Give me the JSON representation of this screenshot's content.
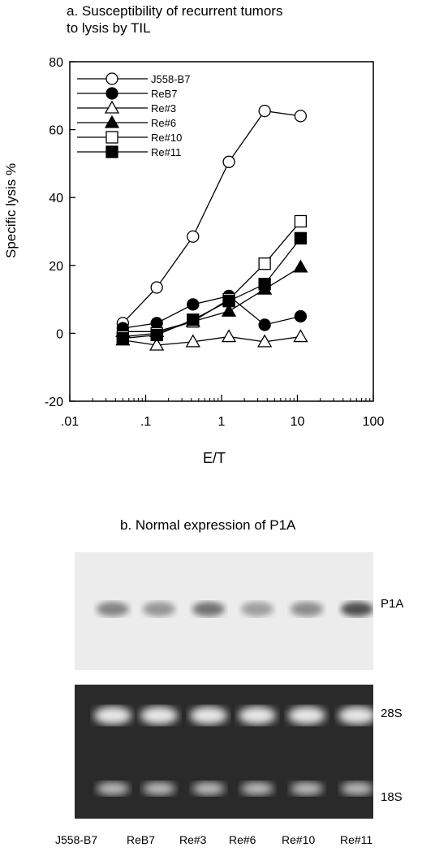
{
  "panel_a": {
    "title": "a. Susceptibility of recurrent tumors\n to lysis by TIL"
  },
  "panel_b": {
    "title": "b. Normal expression of P1A",
    "bands": [
      "P1A",
      "28S",
      "18S"
    ],
    "lanes": [
      "J558-B7",
      "ReB7",
      "Re#3",
      "Re#6",
      "Re#10",
      "Re#11"
    ],
    "p1a_intensity": [
      0.55,
      0.45,
      0.65,
      0.4,
      0.5,
      0.85
    ]
  },
  "chart_data": {
    "type": "line",
    "xlabel": "E/T",
    "ylabel": "Specific lysis %",
    "xscale": "log",
    "xlim": [
      0.01,
      100
    ],
    "ylim": [
      -20,
      80
    ],
    "x_ticks": [
      ".01",
      ".1",
      "1",
      "10",
      "100"
    ],
    "y_ticks": [
      "-20",
      "0",
      "20",
      "40",
      "60",
      "80"
    ],
    "grid": false,
    "legend_position": "top-left",
    "series": [
      {
        "name": "J558-B7",
        "marker": "open-circle",
        "x": [
          0.05,
          0.14,
          0.42,
          1.25,
          3.7,
          11
        ],
        "y": [
          3,
          13.5,
          28.5,
          50.5,
          65.5,
          64
        ]
      },
      {
        "name": "ReB7",
        "marker": "filled-circle",
        "x": [
          0.05,
          0.14,
          0.42,
          1.25,
          3.7,
          11
        ],
        "y": [
          1.5,
          3,
          8.5,
          11,
          2.5,
          5
        ]
      },
      {
        "name": "Re#3",
        "marker": "open-triangle",
        "x": [
          0.05,
          0.14,
          0.42,
          1.25,
          3.7,
          11
        ],
        "y": [
          -2,
          -3.5,
          -2.5,
          -1,
          -2.5,
          -1
        ]
      },
      {
        "name": "Re#6",
        "marker": "filled-triangle",
        "x": [
          0.05,
          0.14,
          0.42,
          1.25,
          3.7,
          11
        ],
        "y": [
          0.5,
          0.5,
          3.5,
          6.5,
          13,
          19.5
        ]
      },
      {
        "name": "Re#10",
        "marker": "open-square",
        "x": [
          0.05,
          0.14,
          0.42,
          1.25,
          3.7,
          11
        ],
        "y": [
          -1,
          0,
          3.5,
          10,
          20.5,
          33
        ]
      },
      {
        "name": "Re#11",
        "marker": "filled-square",
        "x": [
          0.05,
          0.14,
          0.42,
          1.25,
          3.7,
          11
        ],
        "y": [
          -1.5,
          -0.5,
          4,
          9.5,
          14.5,
          28
        ]
      }
    ]
  }
}
